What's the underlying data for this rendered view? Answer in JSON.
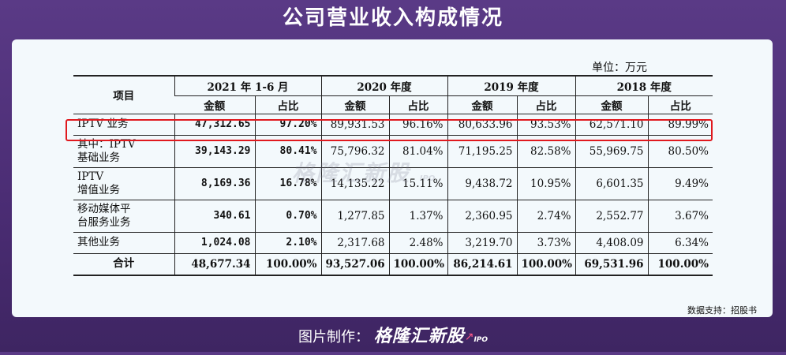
{
  "header": {
    "title": "公司营业收入构成情况"
  },
  "unit": "单位：万元",
  "table": {
    "col_item": "项目",
    "periods": [
      "2021 年 1-6 月",
      "2020 年度",
      "2019 年度",
      "2018 年度"
    ],
    "sub_amount": "金额",
    "sub_ratio": "占比",
    "rows": [
      {
        "item": "IPTV 业务",
        "cells": [
          "47,312.65",
          "97.20%",
          "89,931.53",
          "96.16%",
          "80,633.96",
          "93.53%",
          "62,571.10",
          "89.99%"
        ]
      },
      {
        "item": "其中：IPTV\n基础业务",
        "cells": [
          "39,143.29",
          "80.41%",
          "75,796.32",
          "81.04%",
          "71,195.25",
          "82.58%",
          "55,969.75",
          "80.50%"
        ]
      },
      {
        "item": "IPTV\n增值业务",
        "cells": [
          "8,169.36",
          "16.78%",
          "14,135.22",
          "15.11%",
          "9,438.72",
          "10.95%",
          "6,601.35",
          "9.49%"
        ]
      },
      {
        "item": "移动媒体平\n台服务业务",
        "cells": [
          "340.61",
          "0.70%",
          "1,277.85",
          "1.37%",
          "2,360.95",
          "2.74%",
          "2,552.77",
          "3.67%"
        ]
      },
      {
        "item": "其他业务",
        "cells": [
          "1,024.08",
          "2.10%",
          "2,317.68",
          "2.48%",
          "3,219.70",
          "3.73%",
          "4,408.09",
          "6.34%"
        ]
      },
      {
        "item": "合计",
        "cells": [
          "48,677.34",
          "100.00%",
          "93,527.06",
          "100.00%",
          "86,214.61",
          "100.00%",
          "69,531.96",
          "100.00%"
        ]
      }
    ]
  },
  "watermark": {
    "text": "格隆汇新股",
    "sub": "IPO"
  },
  "source": "数据支持：招股书",
  "footer": {
    "label": "图片制作：",
    "brand": "格隆汇新股",
    "ipo": "IPO"
  },
  "colors": {
    "background": "#4a2c73",
    "card": "#f3f9fc",
    "highlight": "#e0191e"
  }
}
